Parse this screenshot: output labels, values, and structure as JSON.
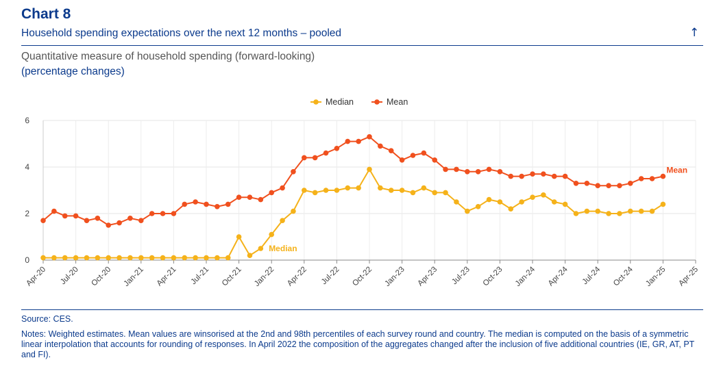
{
  "header": {
    "label": "Chart 8",
    "title": "Household spending expectations over the next 12 months – pooled",
    "up_icon": "arrow-up-icon",
    "subtitle": "Quantitative measure of household spending (forward-looking)",
    "units": "(percentage changes)"
  },
  "chart_data": {
    "type": "line",
    "title": "Quantitative measure of household spending (forward-looking)",
    "ylabel": "percentage changes",
    "xlabel": "",
    "ylim": [
      0,
      6
    ],
    "yticks": [
      "0",
      "2",
      "4",
      "6"
    ],
    "grid": true,
    "legend": "top-center",
    "x_tick_labels": [
      "Apr-20",
      "Jul-20",
      "Oct-20",
      "Jan-21",
      "Apr-21",
      "Jul-21",
      "Oct-21",
      "Jan-22",
      "Apr-22",
      "Jul-22",
      "Oct-22",
      "Jan-23",
      "Apr-23",
      "Jul-23",
      "Oct-23",
      "Jan-24",
      "Apr-24",
      "Jul-24",
      "Oct-24",
      "Jan-25",
      "Apr-25"
    ],
    "x": [
      "Apr-20",
      "May-20",
      "Jun-20",
      "Jul-20",
      "Aug-20",
      "Sep-20",
      "Oct-20",
      "Nov-20",
      "Dec-20",
      "Jan-21",
      "Feb-21",
      "Mar-21",
      "Apr-21",
      "May-21",
      "Jun-21",
      "Jul-21",
      "Aug-21",
      "Sep-21",
      "Oct-21",
      "Nov-21",
      "Dec-21",
      "Jan-22",
      "Feb-22",
      "Mar-22",
      "Apr-22",
      "May-22",
      "Jun-22",
      "Jul-22",
      "Aug-22",
      "Sep-22",
      "Oct-22",
      "Nov-22",
      "Dec-22",
      "Jan-23",
      "Feb-23",
      "Mar-23",
      "Apr-23",
      "May-23",
      "Jun-23",
      "Jul-23",
      "Aug-23",
      "Sep-23",
      "Oct-23",
      "Nov-23",
      "Dec-23",
      "Jan-24",
      "Feb-24",
      "Mar-24",
      "Apr-24",
      "May-24",
      "Jun-24",
      "Jul-24",
      "Aug-24",
      "Sep-24",
      "Oct-24",
      "Nov-24",
      "Dec-24",
      "Jan-25"
    ],
    "series": [
      {
        "name": "Median",
        "color": "#f5b21a",
        "end_label": "Median",
        "values": [
          0.1,
          0.1,
          0.1,
          0.1,
          0.1,
          0.1,
          0.1,
          0.1,
          0.1,
          0.1,
          0.1,
          0.1,
          0.1,
          0.1,
          0.1,
          0.1,
          0.1,
          0.1,
          1.0,
          0.2,
          0.5,
          1.1,
          1.7,
          2.1,
          3.0,
          2.9,
          3.0,
          3.0,
          3.1,
          3.1,
          3.9,
          3.1,
          3.0,
          3.0,
          2.9,
          3.1,
          2.9,
          2.9,
          2.5,
          2.1,
          2.3,
          2.6,
          2.5,
          2.2,
          2.5,
          2.7,
          2.8,
          2.5,
          2.4,
          2.0,
          2.1,
          2.1,
          2.0,
          2.0,
          2.1,
          2.1,
          2.1,
          2.4
        ]
      },
      {
        "name": "Mean",
        "color": "#f0501e",
        "end_label": "Mean",
        "values": [
          1.7,
          2.1,
          1.9,
          1.9,
          1.7,
          1.8,
          1.5,
          1.6,
          1.8,
          1.7,
          2.0,
          2.0,
          2.0,
          2.4,
          2.5,
          2.4,
          2.3,
          2.4,
          2.7,
          2.7,
          2.6,
          2.9,
          3.1,
          3.8,
          4.4,
          4.4,
          4.6,
          4.8,
          5.1,
          5.1,
          5.3,
          4.9,
          4.7,
          4.3,
          4.5,
          4.6,
          4.3,
          3.9,
          3.9,
          3.8,
          3.8,
          3.9,
          3.8,
          3.6,
          3.6,
          3.7,
          3.7,
          3.6,
          3.6,
          3.3,
          3.3,
          3.2,
          3.2,
          3.2,
          3.3,
          3.5,
          3.5,
          3.6
        ]
      }
    ]
  },
  "footer": {
    "source": "Source: CES.",
    "notes": "Notes: Weighted estimates. Mean values are winsorised at the 2nd and 98th percentiles of each survey round and country. The median is computed on the basis of a symmetric linear interpolation that accounts for rounding of responses. In April 2022 the composition of the aggregates changed after the inclusion of five additional countries (IE, GR, AT, PT and FI)."
  }
}
